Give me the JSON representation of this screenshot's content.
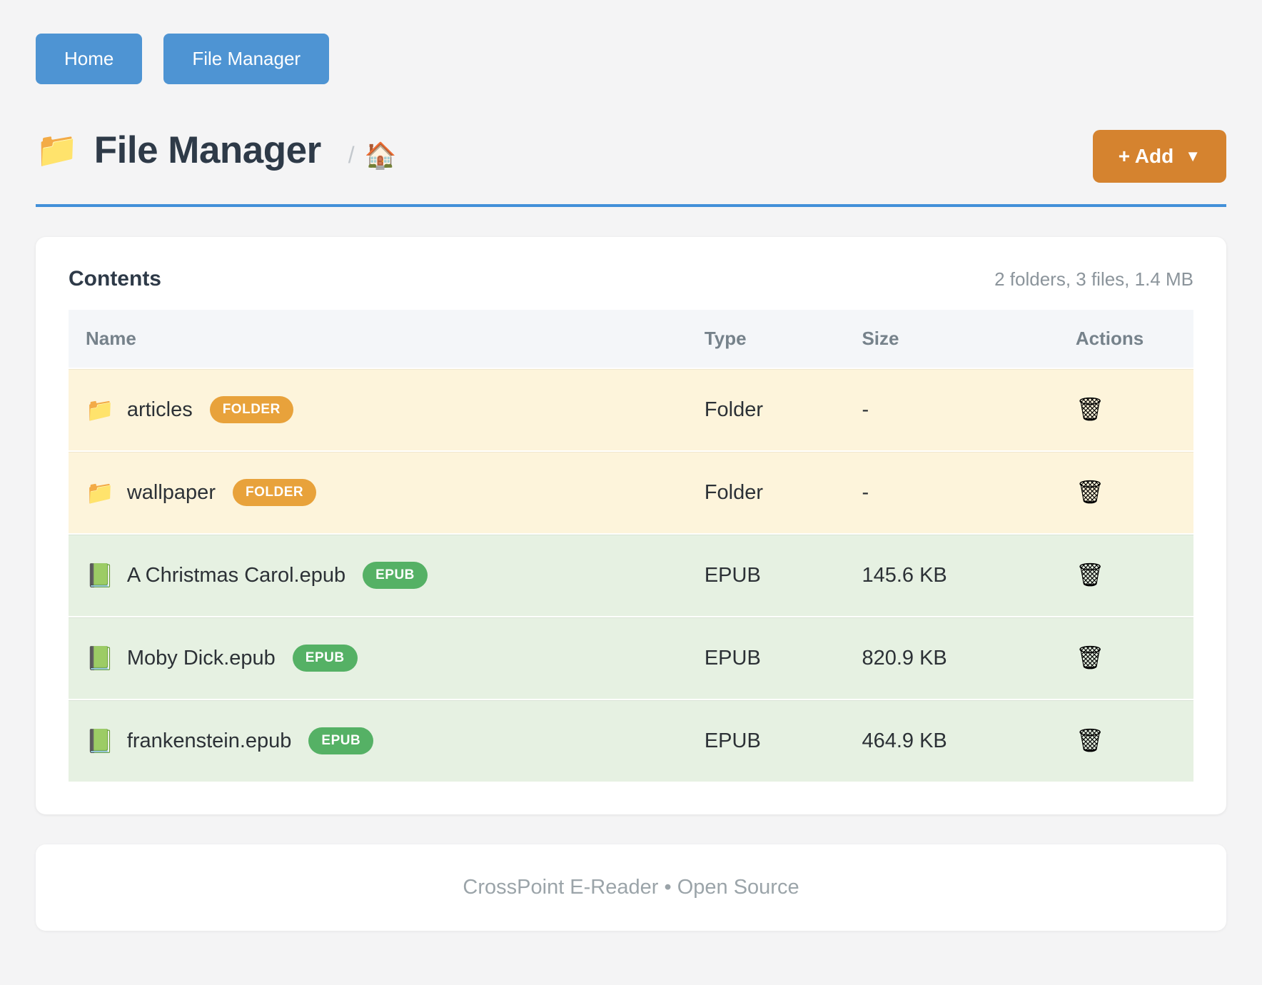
{
  "nav": {
    "home_label": "Home",
    "file_manager_label": "File Manager"
  },
  "header": {
    "title_icon": "📁",
    "title": "File Manager",
    "breadcrumb_separator": "/",
    "breadcrumb_home_icon": "🏠",
    "add_button": {
      "label": "+ Add",
      "caret": "▼"
    }
  },
  "card": {
    "title": "Contents",
    "summary": "2 folders, 3 files, 1.4 MB",
    "table": {
      "columns": [
        "Name",
        "Type",
        "Size",
        "Actions"
      ],
      "action_icon": "🗑",
      "rows": [
        {
          "icon": "📁",
          "name": "articles",
          "badge": "FOLDER",
          "type": "Folder",
          "size": "-"
        },
        {
          "icon": "📁",
          "name": "wallpaper",
          "badge": "FOLDER",
          "type": "Folder",
          "size": "-"
        },
        {
          "icon": "📗",
          "name": "A Christmas Carol.epub",
          "badge": "EPUB",
          "type": "EPUB",
          "size": "145.6 KB"
        },
        {
          "icon": "📗",
          "name": "Moby Dick.epub",
          "badge": "EPUB",
          "type": "EPUB",
          "size": "820.9 KB"
        },
        {
          "icon": "📗",
          "name": "frankenstein.epub",
          "badge": "EPUB",
          "type": "EPUB",
          "size": "464.9 KB"
        }
      ]
    }
  },
  "footer": {
    "text": "CrossPoint E-Reader • Open Source"
  },
  "colors": {
    "nav_blue": "#4e94d3",
    "add_orange": "#d5832f",
    "divider_blue": "#4290d9",
    "folder_badge": "#e8a23b",
    "epub_badge": "#55b165",
    "folder_row_bg": "#fdf4db",
    "epub_row_bg": "#e6f1e2"
  }
}
